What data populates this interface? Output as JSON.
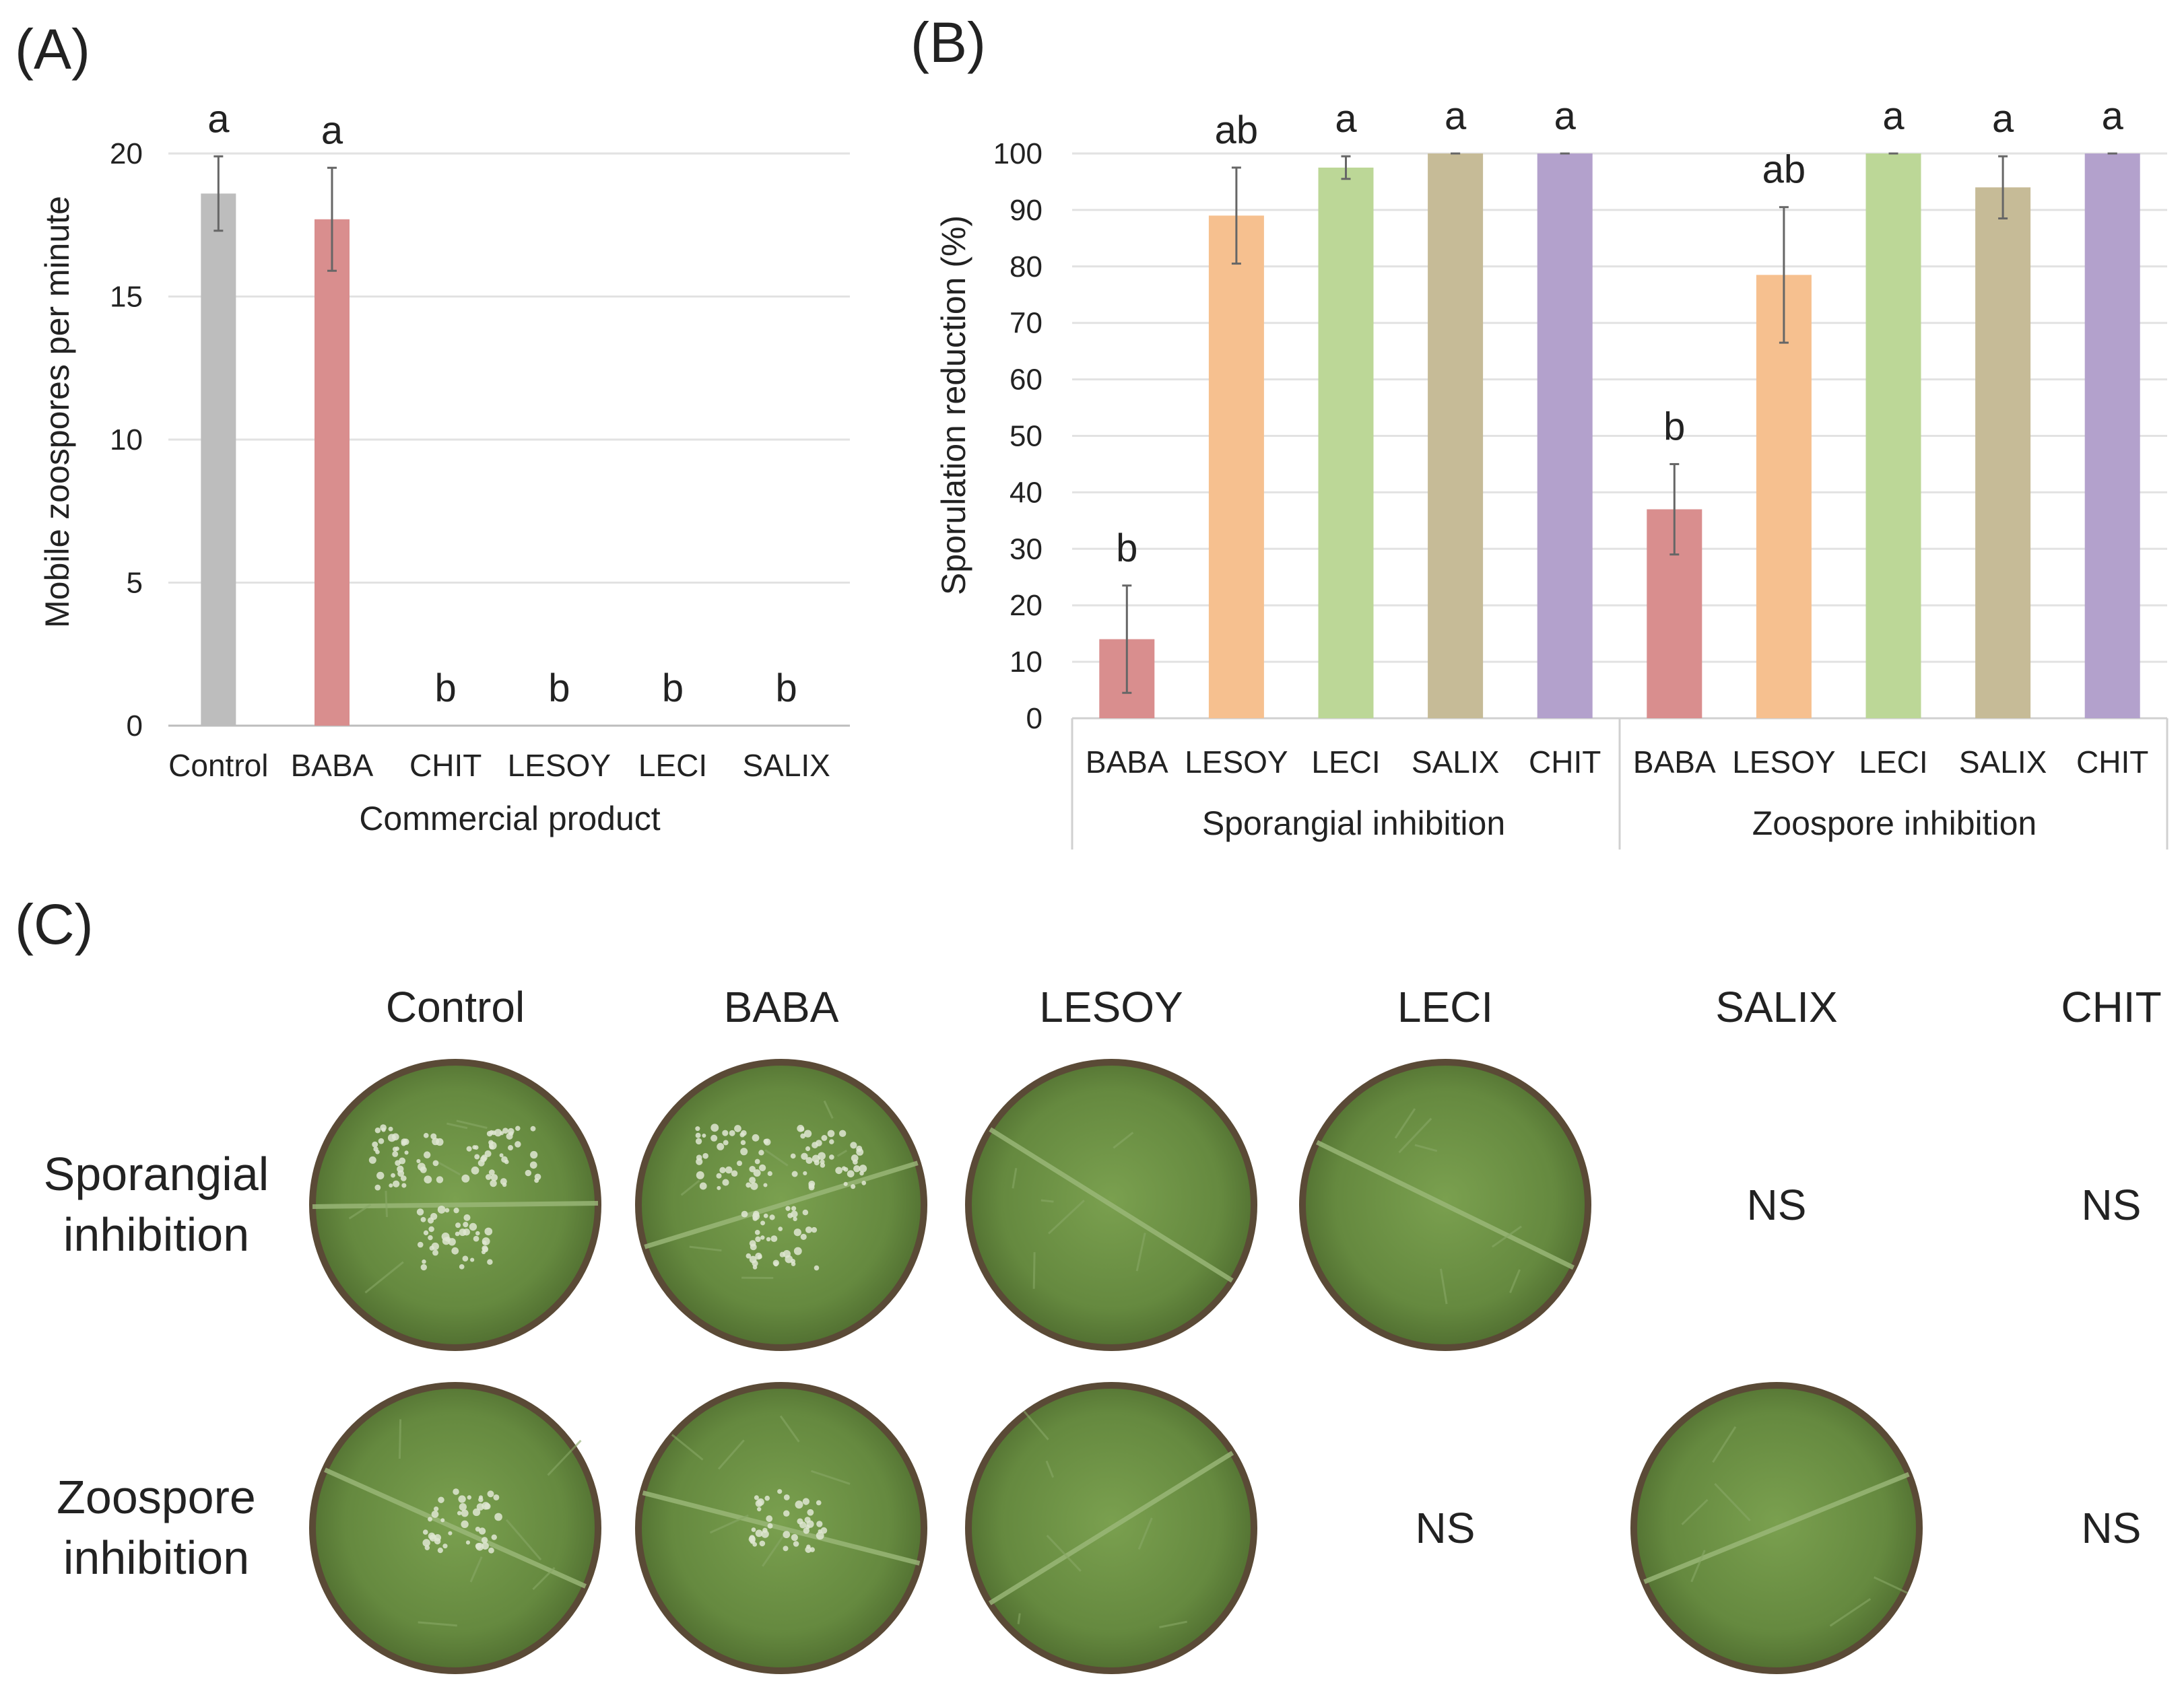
{
  "chart_data": [
    {
      "panel": "(A)",
      "type": "bar",
      "categories": [
        "Control",
        "BABA",
        "CHIT",
        "LESOY",
        "LECI",
        "SALIX"
      ],
      "values": [
        18.6,
        17.7,
        0,
        0,
        0,
        0
      ],
      "errors": [
        1.3,
        1.8,
        0,
        0,
        0,
        0
      ],
      "letters": [
        "a",
        "a",
        "b",
        "b",
        "b",
        "b"
      ],
      "colors": [
        "#bdbdbd",
        "#d98e8e",
        "#cccccc",
        "#cccccc",
        "#cccccc",
        "#cccccc"
      ],
      "ylabel": "Mobile zoospores per minute",
      "xlabel": "Commercial product",
      "ylim": [
        0,
        20
      ],
      "yticks": [
        "0",
        "5",
        "10",
        "15",
        "20"
      ],
      "grid": true
    },
    {
      "panel": "(B)",
      "type": "bar",
      "ylabel": "Sporulation reduction (%)",
      "ylim": [
        0,
        100
      ],
      "yticks": [
        "0",
        "10",
        "20",
        "30",
        "40",
        "50",
        "60",
        "70",
        "80",
        "90",
        "100"
      ],
      "grid": true,
      "groups": [
        {
          "name": "Sporangial inhibition",
          "categories": [
            "BABA",
            "LESOY",
            "LECI",
            "SALIX",
            "CHIT"
          ],
          "values": [
            14,
            89,
            97.5,
            100,
            100
          ],
          "errors": [
            9.5,
            8.5,
            2,
            0,
            0
          ],
          "letters": [
            "b",
            "ab",
            "a",
            "a",
            "a"
          ]
        },
        {
          "name": "Zoospore inhibition",
          "categories": [
            "BABA",
            "LESOY",
            "LECI",
            "SALIX",
            "CHIT"
          ],
          "values": [
            37,
            78.5,
            100,
            94,
            100
          ],
          "errors": [
            8,
            12,
            0,
            5.5,
            0
          ],
          "letters": [
            "b",
            "ab",
            "a",
            "a",
            "a"
          ]
        }
      ],
      "colors": [
        "#d98e8e",
        "#f6c08f",
        "#bcd797",
        "#c6bb97",
        "#b3a1cc"
      ]
    }
  ],
  "panel_c": {
    "label": "(C)",
    "columns": [
      "Control",
      "BABA",
      "LESOY",
      "LECI",
      "SALIX",
      "CHIT"
    ],
    "rows": [
      {
        "label_line1": "Sporangial",
        "label_line2": "inhibition",
        "cells": [
          "leaf",
          "leaf",
          "leaf",
          "leaf",
          "NS",
          "NS"
        ]
      },
      {
        "label_line1": "Zoospore",
        "label_line2": "inhibition",
        "cells": [
          "leaf",
          "leaf",
          "leaf",
          "NS",
          "leaf",
          "NS"
        ]
      }
    ],
    "leaf_color": "#6a8f43",
    "leaf_edge_color": "#5a4a36",
    "spot_color": "#dfe6d2"
  }
}
